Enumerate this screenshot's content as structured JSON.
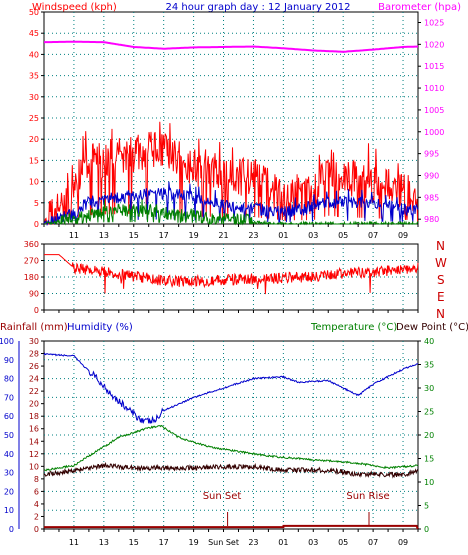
{
  "header": {
    "left": "Windspeed (kph)",
    "center": "24 hour graph day : 12 January 2012",
    "right": "Barometer (hpa)"
  },
  "colors": {
    "red": "#ff0000",
    "blue": "#0000cc",
    "green": "#008000",
    "magenta": "#ff00ff",
    "darkred": "#990000",
    "brown": "#330000",
    "axisred": "#ff0000",
    "grid": "#008080"
  },
  "x_hour_labels": [
    "11",
    "13",
    "15",
    "17",
    "19",
    "21",
    "23",
    "01",
    "03",
    "05",
    "07",
    "09"
  ],
  "x_hour_labels_bottom": [
    "11",
    "13",
    "15",
    "17",
    "19",
    "Sun Set",
    "23",
    "01",
    "03",
    "05",
    "07",
    "09"
  ],
  "panel3_headers": {
    "left1": "Rainfall (mm)",
    "left2": "Humidity (%)",
    "right1": "Temperature (°C)",
    "right2": "Dew Point (°C)"
  },
  "events": {
    "sunset_label": "Sun Set",
    "sunrise_label": "Sun Rise"
  },
  "wind_dir_letters": [
    "N",
    "W",
    "S",
    "E",
    "N"
  ],
  "chart_data": [
    {
      "type": "line",
      "name": "wind",
      "left_axis": {
        "label": "Windspeed (kph)",
        "ticks": [
          0,
          5,
          10,
          15,
          20,
          25,
          30,
          35,
          40,
          45,
          50
        ],
        "ylim": [
          0,
          50
        ]
      },
      "right_axis": {
        "label": "Barometer (hpa)",
        "ticks": [
          980,
          985,
          990,
          995,
          1000,
          1005,
          1010,
          1015,
          1020,
          1025
        ],
        "ylim": [
          978.9,
          1027.4
        ]
      },
      "x_hours": [
        9,
        34
      ],
      "barometer": {
        "x": [
          9,
          11,
          13,
          15,
          17,
          19,
          21,
          23,
          25,
          27,
          29,
          31,
          33,
          34
        ],
        "y": [
          1020.5,
          1020.6,
          1020.5,
          1019.4,
          1019.0,
          1019.3,
          1019.4,
          1019.5,
          1019.1,
          1018.6,
          1018.3,
          1018.8,
          1019.4,
          1019.5
        ]
      },
      "gust": {
        "x": [
          9,
          10,
          10.9,
          11.5,
          13,
          15,
          16,
          17,
          18,
          19,
          21,
          23,
          25,
          27,
          28,
          29,
          30,
          31,
          33,
          34
        ],
        "y": [
          0,
          3,
          5,
          13,
          15,
          16,
          17,
          17,
          15,
          13,
          10,
          11,
          6,
          6,
          13,
          11,
          10,
          9,
          7,
          4
        ]
      },
      "average": {
        "x": [
          9,
          10.9,
          12,
          14,
          16,
          18,
          20,
          22,
          24,
          26,
          28,
          30,
          32,
          34
        ],
        "y": [
          0,
          2,
          5,
          6,
          7,
          7,
          5,
          4,
          3,
          3,
          5,
          5,
          4,
          3
        ]
      },
      "calm": {
        "x": [
          9,
          10.9,
          12,
          14,
          16,
          18,
          19,
          20,
          22,
          24,
          30,
          34
        ],
        "y": [
          0,
          1,
          2,
          3,
          3,
          2,
          2,
          1,
          1,
          0,
          0,
          0
        ]
      }
    },
    {
      "type": "line",
      "name": "wind-direction",
      "left_axis": {
        "ticks": [
          0,
          90,
          180,
          270,
          360
        ],
        "ylim": [
          0,
          360
        ]
      },
      "x_hours": [
        9,
        34
      ],
      "direction": {
        "x": [
          9,
          10,
          11,
          13,
          15,
          17,
          19,
          21,
          23,
          25,
          27,
          29,
          31,
          33,
          34
        ],
        "y": [
          302,
          302,
          230,
          210,
          185,
          160,
          155,
          165,
          170,
          175,
          180,
          200,
          205,
          225,
          230
        ]
      }
    },
    {
      "type": "line",
      "name": "temperature-humidity",
      "left_axis_rain": {
        "ticks": [
          0,
          2,
          4,
          6,
          8,
          10,
          12,
          14,
          16,
          18,
          20,
          22,
          24,
          26,
          28,
          30
        ],
        "ylim": [
          0,
          30
        ]
      },
      "left_axis_humidity": {
        "ticks": [
          0,
          10,
          20,
          30,
          40,
          50,
          60,
          70,
          80,
          90,
          100
        ],
        "ylim": [
          0,
          100
        ]
      },
      "right_axis": {
        "ticks": [
          0,
          5,
          10,
          15,
          20,
          25,
          30,
          35,
          40
        ],
        "ylim": [
          0,
          40
        ]
      },
      "x_hours": [
        9,
        34
      ],
      "humidity": {
        "x": [
          9,
          11,
          12,
          13,
          14,
          15,
          15.8,
          16.5,
          17,
          19,
          21,
          23,
          25,
          26,
          28,
          29,
          30,
          31,
          32,
          33,
          34
        ],
        "y": [
          93,
          92,
          84,
          76,
          68,
          61,
          57,
          58,
          63,
          70,
          75,
          80,
          81,
          78,
          79,
          75,
          71,
          77,
          81,
          85,
          88
        ]
      },
      "temperature": {
        "x": [
          9,
          11,
          12,
          13,
          14,
          15,
          16,
          16.8,
          18,
          20,
          22,
          24,
          26,
          28,
          30,
          32,
          34
        ],
        "y": [
          12.5,
          13.5,
          15.5,
          17.5,
          19.5,
          20.5,
          21.5,
          22.0,
          19.5,
          17.5,
          16.5,
          15.5,
          15.0,
          14.5,
          14.0,
          13.0,
          13.5
        ]
      },
      "dewpoint": {
        "x": [
          9,
          11,
          12,
          13,
          15,
          17,
          19,
          21,
          23,
          25,
          27,
          29,
          30,
          31,
          33,
          34
        ],
        "y": [
          11.5,
          12.5,
          13.0,
          13.5,
          13.0,
          13.0,
          13.0,
          13.2,
          13.3,
          12.5,
          12.6,
          12.2,
          11.5,
          11.7,
          11.5,
          12.5
        ]
      },
      "rainfall": {
        "x": [
          9,
          25,
          25.01,
          33.9,
          34
        ],
        "y": [
          0.3,
          0.3,
          0.5,
          0.5,
          0
        ]
      }
    }
  ]
}
